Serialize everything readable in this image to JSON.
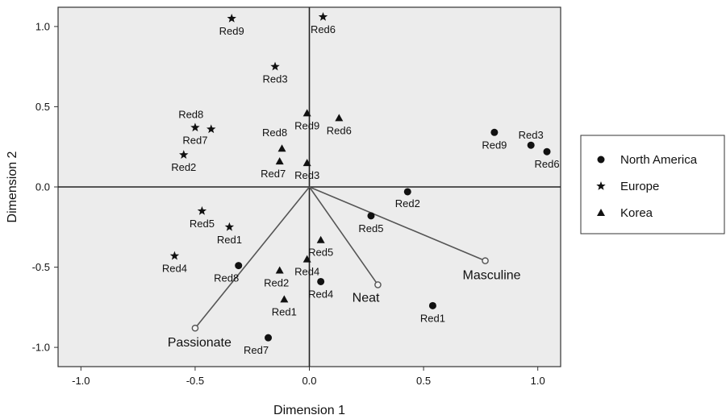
{
  "chart_data": {
    "type": "scatter",
    "xlabel": "Dimension 1",
    "ylabel": "Dimension 2",
    "xlim": [
      -1.1,
      1.1
    ],
    "ylim": [
      -1.12,
      1.12
    ],
    "xticks": [
      -1.0,
      -0.5,
      0.0,
      0.5,
      1.0
    ],
    "yticks": [
      -1.0,
      -0.5,
      0.0,
      0.5,
      1.0
    ],
    "tick_labels_x": [
      "-1.0",
      "-0.5",
      "0.0",
      "0.5",
      "1.0"
    ],
    "tick_labels_y": [
      "-1.0",
      "-0.5",
      "0.0",
      "0.5",
      "1.0"
    ],
    "grid": false,
    "plot_background": "#ececec",
    "legend_position": "right",
    "series": [
      {
        "name": "North America",
        "marker": "circle",
        "points": [
          {
            "label": "Red1",
            "x": 0.54,
            "y": -0.74
          },
          {
            "label": "Red2",
            "x": 0.43,
            "y": -0.03
          },
          {
            "label": "Red3",
            "x": 0.97,
            "y": 0.26
          },
          {
            "label": "Red4",
            "x": 0.05,
            "y": -0.59
          },
          {
            "label": "Red5",
            "x": 0.27,
            "y": -0.18
          },
          {
            "label": "Red6",
            "x": 1.04,
            "y": 0.22
          },
          {
            "label": "Red7",
            "x": -0.18,
            "y": -0.94
          },
          {
            "label": "Red8",
            "x": -0.31,
            "y": -0.49
          },
          {
            "label": "Red9",
            "x": 0.81,
            "y": 0.34
          }
        ]
      },
      {
        "name": "Europe",
        "marker": "star",
        "points": [
          {
            "label": "Red1",
            "x": -0.35,
            "y": -0.25
          },
          {
            "label": "Red2",
            "x": -0.55,
            "y": 0.2
          },
          {
            "label": "Red3",
            "x": -0.15,
            "y": 0.75
          },
          {
            "label": "Red4",
            "x": -0.59,
            "y": -0.43
          },
          {
            "label": "Red5",
            "x": -0.47,
            "y": -0.15
          },
          {
            "label": "Red6",
            "x": 0.06,
            "y": 1.06
          },
          {
            "label": "Red7",
            "x": -0.5,
            "y": 0.37
          },
          {
            "label": "Red8",
            "x": -0.43,
            "y": 0.36
          },
          {
            "label": "Red9",
            "x": -0.34,
            "y": 1.05
          }
        ]
      },
      {
        "name": "Korea",
        "marker": "triangle",
        "points": [
          {
            "label": "Red1",
            "x": -0.11,
            "y": -0.7
          },
          {
            "label": "Red2",
            "x": -0.13,
            "y": -0.52
          },
          {
            "label": "Red3",
            "x": -0.01,
            "y": 0.15
          },
          {
            "label": "Red4",
            "x": -0.01,
            "y": -0.45
          },
          {
            "label": "Red5",
            "x": 0.05,
            "y": -0.33
          },
          {
            "label": "Red6",
            "x": 0.13,
            "y": 0.43
          },
          {
            "label": "Red7",
            "x": -0.13,
            "y": 0.16
          },
          {
            "label": "Red8",
            "x": -0.12,
            "y": 0.24
          },
          {
            "label": "Red9",
            "x": -0.01,
            "y": 0.46
          }
        ]
      }
    ],
    "vectors": [
      {
        "label": "Passionate",
        "x": -0.5,
        "y": -0.88
      },
      {
        "label": "Neat",
        "x": 0.3,
        "y": -0.61
      },
      {
        "label": "Masculine",
        "x": 0.77,
        "y": -0.46
      }
    ]
  }
}
